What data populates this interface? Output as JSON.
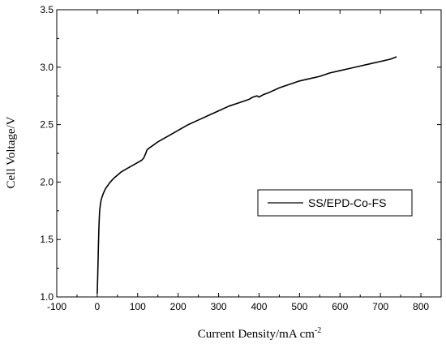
{
  "chart_data": {
    "type": "line",
    "xlabel": "Current Density/mA cm",
    "xlabel_sup": "-2",
    "ylabel": "Cell Voltage/V",
    "xlim": [
      -100,
      850
    ],
    "ylim": [
      1.0,
      3.5
    ],
    "xticks": [
      -100,
      0,
      100,
      200,
      300,
      400,
      500,
      600,
      700,
      800
    ],
    "xtick_labels": [
      "-100",
      "0",
      "100",
      "200",
      "300",
      "400",
      "500",
      "600",
      "700",
      "800"
    ],
    "yticks": [
      1.0,
      1.5,
      2.0,
      2.5,
      3.0,
      3.5
    ],
    "ytick_labels": [
      "1.0",
      "1.5",
      "2.0",
      "2.5",
      "3.0",
      "3.5"
    ],
    "grid": false,
    "legend_position": "middle-right",
    "series": [
      {
        "name": "SS/EPD-Co-FS",
        "color": "#000000",
        "x": [
          0,
          1,
          2,
          3,
          4,
          5,
          6,
          8,
          10,
          15,
          20,
          30,
          40,
          50,
          60,
          70,
          80,
          90,
          100,
          110,
          115,
          120,
          123,
          130,
          150,
          175,
          200,
          225,
          250,
          275,
          300,
          325,
          350,
          375,
          385,
          395,
          400,
          410,
          425,
          450,
          475,
          500,
          525,
          550,
          575,
          600,
          625,
          650,
          675,
          700,
          725,
          740
        ],
        "y": [
          1.03,
          1.15,
          1.3,
          1.45,
          1.58,
          1.68,
          1.75,
          1.81,
          1.85,
          1.9,
          1.94,
          1.99,
          2.03,
          2.06,
          2.09,
          2.11,
          2.13,
          2.15,
          2.17,
          2.19,
          2.21,
          2.25,
          2.28,
          2.3,
          2.35,
          2.4,
          2.45,
          2.5,
          2.54,
          2.58,
          2.62,
          2.66,
          2.69,
          2.72,
          2.74,
          2.75,
          2.74,
          2.76,
          2.78,
          2.82,
          2.85,
          2.88,
          2.9,
          2.92,
          2.95,
          2.97,
          2.99,
          3.01,
          3.03,
          3.05,
          3.07,
          3.09
        ]
      }
    ]
  }
}
